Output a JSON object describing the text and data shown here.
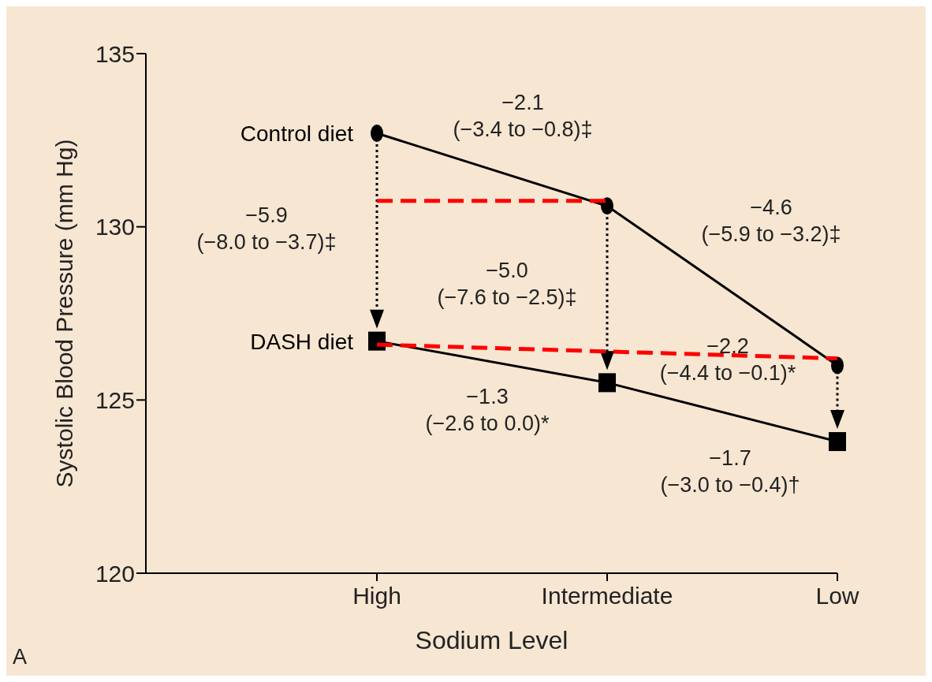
{
  "chart_data": {
    "type": "line",
    "xlabel": "Sodium Level",
    "ylabel": "Systolic Blood Pressure (mm Hg)",
    "categories": [
      "High",
      "Intermediate",
      "Low"
    ],
    "ylim": [
      120,
      135
    ],
    "yticks": [
      120,
      125,
      130,
      135
    ],
    "grid": false,
    "legend": false,
    "series": [
      {
        "name": "Control diet",
        "color": "#000000",
        "values": [
          132.7,
          130.6,
          126.0
        ],
        "marker": "circle",
        "line_style": "solid"
      },
      {
        "name": "DASH diet",
        "color": "#000000",
        "values": [
          126.7,
          125.5,
          123.8
        ],
        "marker": "square",
        "line_style": "solid"
      },
      {
        "color": "#ff0000",
        "values": [
          130.75,
          130.75,
          null
        ],
        "marker": "none",
        "line_style": "dashed"
      },
      {
        "color": "#ff0000",
        "values": [
          126.6,
          null,
          126.2
        ],
        "marker": "none",
        "line_style": "dashed"
      }
    ],
    "annotations": [
      "−2.1\n(−3.4 to −0.8)‡",
      "−5.9\n(−8.0 to −3.7)‡",
      "−4.6\n(−5.9 to −3.2)‡",
      "−5.0\n(−7.6 to −2.5)‡",
      "−2.2\n(−4.4 to −0.1)*",
      "−1.3\n(−2.6 to 0.0)*",
      "−1.7\n(−3.0 to −0.4)†",
      "A"
    ]
  }
}
